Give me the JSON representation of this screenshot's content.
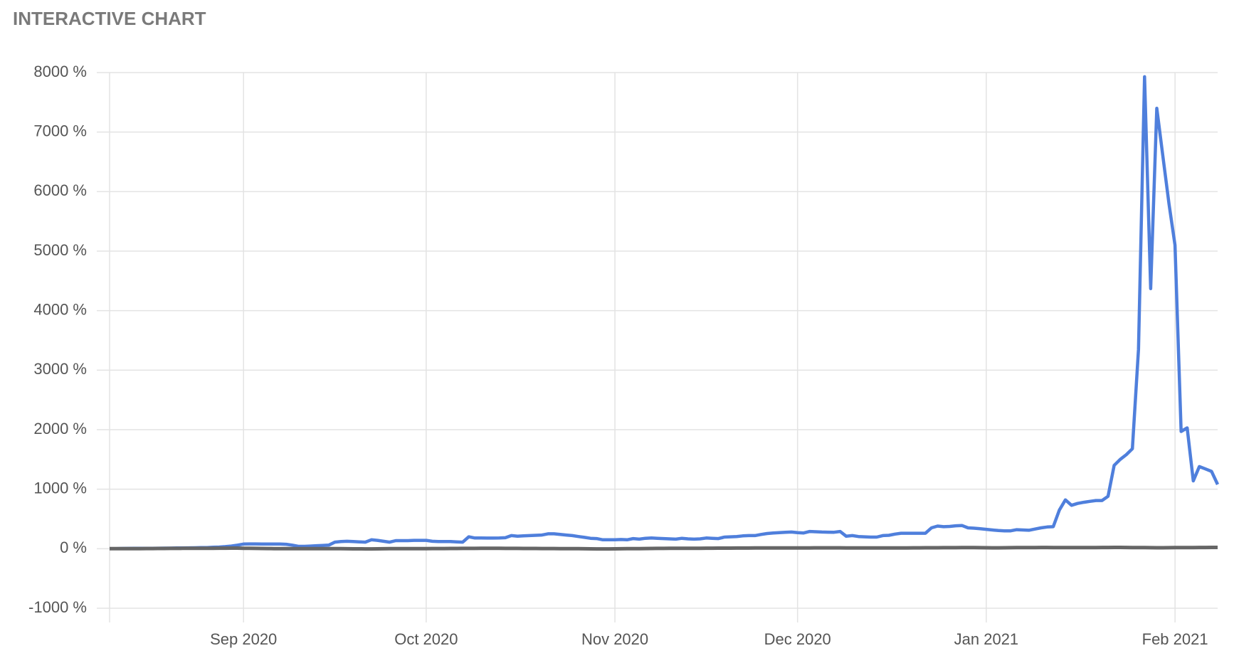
{
  "chart_data": {
    "type": "line",
    "title": "INTERACTIVE CHART",
    "categories": [
      null,
      null,
      null,
      null,
      null,
      null,
      null,
      null,
      null,
      null,
      null,
      null,
      null,
      null,
      null,
      null,
      null,
      null,
      null,
      null,
      null,
      null,
      "Sep 2020",
      null,
      null,
      null,
      null,
      null,
      null,
      null,
      null,
      null,
      null,
      null,
      null,
      null,
      null,
      null,
      null,
      null,
      null,
      null,
      null,
      null,
      null,
      null,
      null,
      null,
      null,
      null,
      null,
      null,
      "Oct 2020",
      null,
      null,
      null,
      null,
      null,
      null,
      null,
      null,
      null,
      null,
      null,
      null,
      null,
      null,
      null,
      null,
      null,
      null,
      null,
      null,
      null,
      null,
      null,
      null,
      null,
      null,
      null,
      null,
      null,
      null,
      "Nov 2020",
      null,
      null,
      null,
      null,
      null,
      null,
      null,
      null,
      null,
      null,
      null,
      null,
      null,
      null,
      null,
      null,
      null,
      null,
      null,
      null,
      null,
      null,
      null,
      null,
      null,
      null,
      null,
      null,
      null,
      "Dec 2020",
      null,
      null,
      null,
      null,
      null,
      null,
      null,
      null,
      null,
      null,
      null,
      null,
      null,
      null,
      null,
      null,
      null,
      null,
      null,
      null,
      null,
      null,
      null,
      null,
      null,
      null,
      null,
      null,
      null,
      null,
      "Jan 2021",
      null,
      null,
      null,
      null,
      null,
      null,
      null,
      null,
      null,
      null,
      null,
      null,
      null,
      null,
      null,
      null,
      null,
      null,
      null,
      null,
      null,
      null,
      null,
      null,
      null,
      null,
      null,
      null,
      null,
      null,
      "Feb 2021",
      null,
      null,
      null,
      null,
      null,
      null,
      null
    ],
    "series": [
      {
        "color": "#4f7fdc",
        "values": [
          0,
          2,
          4,
          5,
          6,
          7,
          8,
          8,
          9,
          10,
          10,
          12,
          14,
          15,
          16,
          18,
          20,
          24,
          28,
          35,
          45,
          60,
          78,
          80,
          80,
          78,
          78,
          78,
          78,
          75,
          60,
          40,
          40,
          45,
          50,
          55,
          60,
          110,
          120,
          125,
          120,
          115,
          110,
          150,
          140,
          125,
          110,
          135,
          135,
          135,
          140,
          140,
          140,
          125,
          120,
          120,
          120,
          115,
          110,
          200,
          180,
          180,
          178,
          178,
          180,
          185,
          220,
          210,
          215,
          220,
          225,
          230,
          250,
          250,
          240,
          230,
          220,
          205,
          190,
          175,
          170,
          150,
          150,
          150,
          155,
          150,
          170,
          160,
          175,
          180,
          175,
          170,
          165,
          160,
          175,
          165,
          160,
          165,
          180,
          175,
          170,
          195,
          200,
          205,
          215,
          220,
          220,
          240,
          255,
          265,
          270,
          275,
          280,
          270,
          265,
          290,
          285,
          280,
          278,
          276,
          290,
          210,
          220,
          205,
          200,
          195,
          195,
          220,
          225,
          245,
          260,
          260,
          260,
          260,
          260,
          350,
          380,
          370,
          375,
          385,
          390,
          350,
          345,
          335,
          325,
          315,
          305,
          300,
          300,
          320,
          315,
          310,
          330,
          350,
          365,
          370,
          650,
          820,
          730,
          760,
          780,
          795,
          810,
          810,
          880,
          1400,
          1500,
          1580,
          1680,
          3350,
          7930,
          4370,
          7400,
          6600,
          5800,
          5100,
          1970,
          2030,
          1140,
          1380,
          1340,
          1300,
          1080
        ]
      },
      {
        "color": "#666666",
        "values": [
          0,
          0,
          1,
          1,
          2,
          2,
          3,
          3,
          4,
          4,
          5,
          5,
          6,
          6,
          7,
          7,
          8,
          8,
          9,
          9,
          10,
          10,
          8,
          6,
          5,
          4,
          3,
          2,
          2,
          1,
          0,
          0,
          0,
          1,
          1,
          2,
          2,
          1,
          0,
          -1,
          -2,
          -2,
          -3,
          -3,
          -2,
          -1,
          0,
          0,
          1,
          1,
          2,
          2,
          2,
          3,
          3,
          3,
          4,
          4,
          5,
          5,
          5,
          6,
          6,
          6,
          6,
          5,
          5,
          5,
          4,
          4,
          4,
          3,
          3,
          3,
          2,
          2,
          1,
          0,
          -1,
          -2,
          -3,
          -3,
          -3,
          -2,
          -1,
          0,
          1,
          2,
          3,
          4,
          5,
          5,
          6,
          6,
          7,
          7,
          8,
          8,
          9,
          9,
          10,
          10,
          10,
          11,
          11,
          11,
          12,
          12,
          12,
          13,
          13,
          13,
          14,
          14,
          14,
          14,
          15,
          15,
          15,
          15,
          15,
          14,
          14,
          13,
          13,
          12,
          12,
          12,
          13,
          13,
          14,
          14,
          15,
          15,
          16,
          16,
          16,
          17,
          17,
          17,
          18,
          18,
          18,
          17,
          16,
          15,
          15,
          16,
          17,
          18,
          19,
          20,
          20,
          21,
          21,
          20,
          20,
          19,
          19,
          18,
          18,
          19,
          20,
          21,
          21,
          22,
          22,
          21,
          20,
          19,
          18,
          17,
          16,
          16,
          17,
          18,
          19,
          20,
          20,
          21,
          21,
          22,
          22
        ]
      }
    ],
    "ylim": [
      -1000,
      8000
    ],
    "yticks": [
      {
        "value": -1000,
        "label": "-1000 %"
      },
      {
        "value": 0,
        "label": "0 %"
      },
      {
        "value": 1000,
        "label": "1000 %"
      },
      {
        "value": 2000,
        "label": "2000 %"
      },
      {
        "value": 3000,
        "label": "3000 %"
      },
      {
        "value": 4000,
        "label": "4000 %"
      },
      {
        "value": 5000,
        "label": "5000 %"
      },
      {
        "value": 6000,
        "label": "6000 %"
      },
      {
        "value": 7000,
        "label": "7000 %"
      },
      {
        "value": 8000,
        "label": "8000 %"
      }
    ],
    "grid": true
  }
}
